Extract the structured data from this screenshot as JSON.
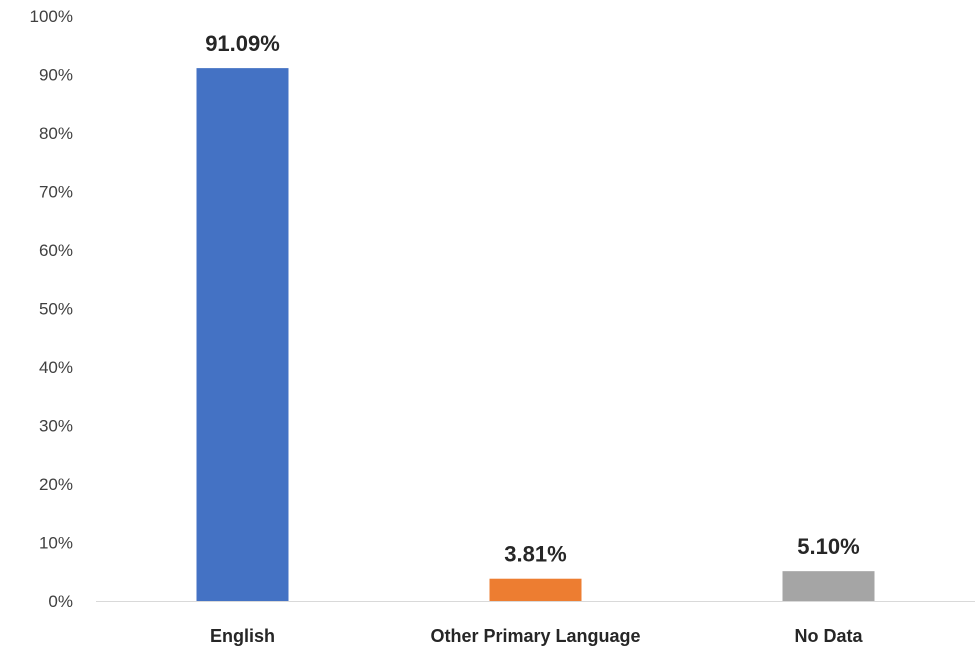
{
  "chart_data": {
    "type": "bar",
    "categories": [
      "English",
      "Other Primary Language",
      "No Data"
    ],
    "values": [
      91.09,
      3.81,
      5.1
    ],
    "data_labels": [
      "91.09%",
      "3.81%",
      "5.10%"
    ],
    "colors": [
      "#4472C4",
      "#ED7D31",
      "#A5A5A5"
    ],
    "ylim": [
      0,
      100
    ],
    "yticks": [
      "0%",
      "10%",
      "20%",
      "30%",
      "40%",
      "50%",
      "60%",
      "70%",
      "80%",
      "90%",
      "100%"
    ],
    "grid": false,
    "legend": "none"
  }
}
